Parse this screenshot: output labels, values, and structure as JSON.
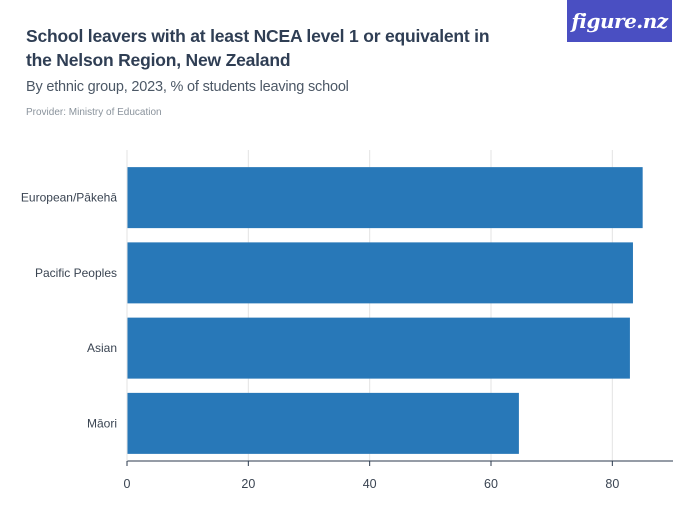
{
  "header": {
    "title": "School leavers with at least NCEA level 1 or equivalent in the Nelson Region, New Zealand",
    "subtitle": "By ethnic group, 2023, % of students leaving school",
    "provider": "Provider: Ministry of Education",
    "logo": "figure.nz"
  },
  "colors": {
    "bar": "#2878b8",
    "grid": "#e3e3e3",
    "axis": "#2b3a4d",
    "logo_bg": "#4a4fc2"
  },
  "chart_data": {
    "type": "bar",
    "orientation": "horizontal",
    "categories": [
      "European/Pākehā",
      "Pacific Peoples",
      "Asian",
      "Māori"
    ],
    "values": [
      85.0,
      83.4,
      82.9,
      64.6
    ],
    "xlim": [
      0,
      90
    ],
    "xticks": [
      0,
      20,
      40,
      60,
      80
    ],
    "grid": "vertical"
  }
}
